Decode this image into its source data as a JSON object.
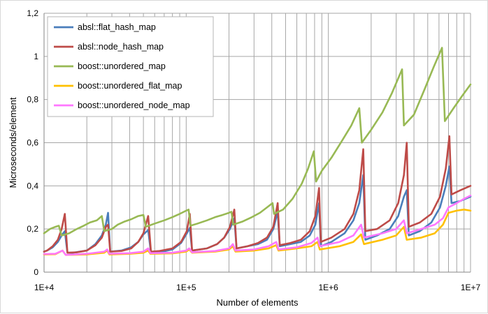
{
  "chart_data": {
    "type": "line",
    "xlabel": "Number of elements",
    "ylabel": "Microseconds/element",
    "xscale": "log",
    "xlim": [
      10000,
      10000000
    ],
    "ylim": [
      0,
      1.2
    ],
    "grid": true,
    "legend_position": "top-left",
    "x_tick_labels": [
      "1E+4",
      "1E+5",
      "1E+6",
      "1E+7"
    ],
    "y_tick_labels": [
      "0",
      "0,2",
      "0,4",
      "0,6",
      "0,8",
      "1",
      "1,2"
    ],
    "series": [
      {
        "name": "absl::flat_hash_map",
        "color": "#4a7ebb",
        "points": [
          [
            10000,
            0.095
          ],
          [
            10500,
            0.1
          ],
          [
            11500,
            0.115
          ],
          [
            12500,
            0.14
          ],
          [
            13300,
            0.17
          ],
          [
            14000,
            0.19
          ],
          [
            14600,
            0.09
          ],
          [
            16000,
            0.09
          ],
          [
            20000,
            0.1
          ],
          [
            23000,
            0.13
          ],
          [
            25500,
            0.17
          ],
          [
            27200,
            0.22
          ],
          [
            28200,
            0.275
          ],
          [
            29200,
            0.095
          ],
          [
            35000,
            0.1
          ],
          [
            41000,
            0.115
          ],
          [
            46000,
            0.14
          ],
          [
            50000,
            0.175
          ],
          [
            54000,
            0.195
          ],
          [
            56500,
            0.09
          ],
          [
            65000,
            0.092
          ],
          [
            80000,
            0.105
          ],
          [
            92000,
            0.135
          ],
          [
            101000,
            0.18
          ],
          [
            106000,
            0.205
          ],
          [
            110000,
            0.1
          ],
          [
            140000,
            0.11
          ],
          [
            165000,
            0.13
          ],
          [
            185000,
            0.16
          ],
          [
            203000,
            0.2
          ],
          [
            218000,
            0.25
          ],
          [
            226000,
            0.11
          ],
          [
            270000,
            0.12
          ],
          [
            320000,
            0.13
          ],
          [
            370000,
            0.15
          ],
          [
            410000,
            0.2
          ],
          [
            440000,
            0.28
          ],
          [
            455000,
            0.12
          ],
          [
            540000,
            0.13
          ],
          [
            640000,
            0.14
          ],
          [
            740000,
            0.17
          ],
          [
            810000,
            0.22
          ],
          [
            860000,
            0.32
          ],
          [
            885000,
            0.12
          ],
          [
            1050000,
            0.14
          ],
          [
            1300000,
            0.18
          ],
          [
            1500000,
            0.24
          ],
          [
            1650000,
            0.32
          ],
          [
            1760000,
            0.45
          ],
          [
            1820000,
            0.15
          ],
          [
            2200000,
            0.17
          ],
          [
            2700000,
            0.2
          ],
          [
            3100000,
            0.26
          ],
          [
            3400000,
            0.35
          ],
          [
            3560000,
            0.38
          ],
          [
            3680000,
            0.17
          ],
          [
            4400000,
            0.19
          ],
          [
            5300000,
            0.23
          ],
          [
            6100000,
            0.3
          ],
          [
            6700000,
            0.4
          ],
          [
            7100000,
            0.49
          ],
          [
            7350000,
            0.32
          ],
          [
            8500000,
            0.33
          ],
          [
            10000000,
            0.35
          ]
        ]
      },
      {
        "name": "absl::node_hash_map",
        "color": "#be4b48",
        "points": [
          [
            10000,
            0.095
          ],
          [
            10500,
            0.1
          ],
          [
            11500,
            0.12
          ],
          [
            12500,
            0.15
          ],
          [
            13300,
            0.2
          ],
          [
            14000,
            0.27
          ],
          [
            14600,
            0.09
          ],
          [
            17000,
            0.092
          ],
          [
            20000,
            0.1
          ],
          [
            23000,
            0.125
          ],
          [
            25500,
            0.16
          ],
          [
            27200,
            0.21
          ],
          [
            28200,
            0.22
          ],
          [
            29200,
            0.095
          ],
          [
            35000,
            0.098
          ],
          [
            41000,
            0.11
          ],
          [
            46000,
            0.14
          ],
          [
            50000,
            0.18
          ],
          [
            54000,
            0.26
          ],
          [
            56500,
            0.095
          ],
          [
            65000,
            0.098
          ],
          [
            80000,
            0.11
          ],
          [
            92000,
            0.14
          ],
          [
            101000,
            0.19
          ],
          [
            106000,
            0.27
          ],
          [
            110000,
            0.1
          ],
          [
            140000,
            0.11
          ],
          [
            165000,
            0.13
          ],
          [
            185000,
            0.16
          ],
          [
            203000,
            0.21
          ],
          [
            218000,
            0.29
          ],
          [
            226000,
            0.11
          ],
          [
            270000,
            0.12
          ],
          [
            320000,
            0.135
          ],
          [
            370000,
            0.16
          ],
          [
            410000,
            0.21
          ],
          [
            440000,
            0.32
          ],
          [
            455000,
            0.125
          ],
          [
            540000,
            0.135
          ],
          [
            640000,
            0.15
          ],
          [
            740000,
            0.19
          ],
          [
            810000,
            0.26
          ],
          [
            860000,
            0.39
          ],
          [
            885000,
            0.14
          ],
          [
            1050000,
            0.16
          ],
          [
            1300000,
            0.2
          ],
          [
            1500000,
            0.27
          ],
          [
            1650000,
            0.38
          ],
          [
            1760000,
            0.57
          ],
          [
            1820000,
            0.19
          ],
          [
            2200000,
            0.2
          ],
          [
            2700000,
            0.24
          ],
          [
            3100000,
            0.32
          ],
          [
            3400000,
            0.45
          ],
          [
            3560000,
            0.6
          ],
          [
            3680000,
            0.21
          ],
          [
            4400000,
            0.23
          ],
          [
            5300000,
            0.27
          ],
          [
            6100000,
            0.35
          ],
          [
            6700000,
            0.48
          ],
          [
            7100000,
            0.63
          ],
          [
            7350000,
            0.36
          ],
          [
            8500000,
            0.38
          ],
          [
            10000000,
            0.4
          ]
        ]
      },
      {
        "name": "boost::unordered_map",
        "color": "#98b954",
        "points": [
          [
            10000,
            0.18
          ],
          [
            11000,
            0.2
          ],
          [
            12000,
            0.21
          ],
          [
            12700,
            0.215
          ],
          [
            13300,
            0.17
          ],
          [
            15000,
            0.18
          ],
          [
            17000,
            0.2
          ],
          [
            19000,
            0.215
          ],
          [
            21000,
            0.23
          ],
          [
            23500,
            0.24
          ],
          [
            25500,
            0.26
          ],
          [
            26500,
            0.19
          ],
          [
            30000,
            0.2
          ],
          [
            33000,
            0.22
          ],
          [
            37000,
            0.235
          ],
          [
            41000,
            0.245
          ],
          [
            46000,
            0.26
          ],
          [
            50000,
            0.265
          ],
          [
            52000,
            0.21
          ],
          [
            60000,
            0.225
          ],
          [
            70000,
            0.24
          ],
          [
            80000,
            0.255
          ],
          [
            90000,
            0.27
          ],
          [
            100000,
            0.285
          ],
          [
            104000,
            0.29
          ],
          [
            107000,
            0.215
          ],
          [
            120000,
            0.225
          ],
          [
            140000,
            0.24
          ],
          [
            160000,
            0.255
          ],
          [
            180000,
            0.265
          ],
          [
            200000,
            0.275
          ],
          [
            208000,
            0.28
          ],
          [
            214000,
            0.22
          ],
          [
            250000,
            0.235
          ],
          [
            290000,
            0.255
          ],
          [
            330000,
            0.275
          ],
          [
            370000,
            0.3
          ],
          [
            405000,
            0.32
          ],
          [
            415000,
            0.27
          ],
          [
            480000,
            0.29
          ],
          [
            560000,
            0.34
          ],
          [
            650000,
            0.41
          ],
          [
            720000,
            0.48
          ],
          [
            790000,
            0.56
          ],
          [
            820000,
            0.42
          ],
          [
            900000,
            0.47
          ],
          [
            1050000,
            0.53
          ],
          [
            1250000,
            0.61
          ],
          [
            1450000,
            0.68
          ],
          [
            1650000,
            0.76
          ],
          [
            1720000,
            0.6
          ],
          [
            2000000,
            0.66
          ],
          [
            2400000,
            0.74
          ],
          [
            2800000,
            0.83
          ],
          [
            3300000,
            0.94
          ],
          [
            3400000,
            0.68
          ],
          [
            4000000,
            0.73
          ],
          [
            4700000,
            0.84
          ],
          [
            5500000,
            0.95
          ],
          [
            6300000,
            1.04
          ],
          [
            6600000,
            0.7
          ],
          [
            7600000,
            0.76
          ],
          [
            8800000,
            0.82
          ],
          [
            10000000,
            0.87
          ]
        ]
      },
      {
        "name": "boost::unordered_flat_map",
        "color": "#ffc000",
        "points": [
          [
            10000,
            0.082
          ],
          [
            12000,
            0.083
          ],
          [
            13500,
            0.1
          ],
          [
            14200,
            0.08
          ],
          [
            20000,
            0.082
          ],
          [
            26500,
            0.09
          ],
          [
            27800,
            0.1
          ],
          [
            28800,
            0.082
          ],
          [
            40000,
            0.085
          ],
          [
            50000,
            0.09
          ],
          [
            54000,
            0.1
          ],
          [
            56000,
            0.085
          ],
          [
            80000,
            0.087
          ],
          [
            100000,
            0.095
          ],
          [
            105000,
            0.105
          ],
          [
            110000,
            0.09
          ],
          [
            160000,
            0.095
          ],
          [
            200000,
            0.105
          ],
          [
            213000,
            0.12
          ],
          [
            222000,
            0.095
          ],
          [
            300000,
            0.1
          ],
          [
            380000,
            0.11
          ],
          [
            430000,
            0.125
          ],
          [
            446000,
            0.1
          ],
          [
            600000,
            0.11
          ],
          [
            760000,
            0.12
          ],
          [
            840000,
            0.14
          ],
          [
            870000,
            0.105
          ],
          [
            1200000,
            0.12
          ],
          [
            1500000,
            0.14
          ],
          [
            1700000,
            0.175
          ],
          [
            1780000,
            0.13
          ],
          [
            2400000,
            0.15
          ],
          [
            3000000,
            0.17
          ],
          [
            3400000,
            0.21
          ],
          [
            3560000,
            0.15
          ],
          [
            4500000,
            0.16
          ],
          [
            5600000,
            0.18
          ],
          [
            6400000,
            0.22
          ],
          [
            7000000,
            0.275
          ],
          [
            8000000,
            0.285
          ],
          [
            9000000,
            0.29
          ],
          [
            10000000,
            0.285
          ]
        ]
      },
      {
        "name": "boost::unordered_node_map",
        "color": "#ff77ff",
        "points": [
          [
            10000,
            0.084
          ],
          [
            12000,
            0.085
          ],
          [
            13500,
            0.1
          ],
          [
            14200,
            0.08
          ],
          [
            20000,
            0.085
          ],
          [
            26500,
            0.095
          ],
          [
            27800,
            0.105
          ],
          [
            28800,
            0.085
          ],
          [
            40000,
            0.088
          ],
          [
            50000,
            0.095
          ],
          [
            54000,
            0.11
          ],
          [
            56000,
            0.088
          ],
          [
            80000,
            0.09
          ],
          [
            100000,
            0.1
          ],
          [
            105000,
            0.11
          ],
          [
            110000,
            0.092
          ],
          [
            160000,
            0.098
          ],
          [
            200000,
            0.11
          ],
          [
            213000,
            0.13
          ],
          [
            222000,
            0.1
          ],
          [
            300000,
            0.105
          ],
          [
            380000,
            0.12
          ],
          [
            430000,
            0.14
          ],
          [
            446000,
            0.105
          ],
          [
            600000,
            0.115
          ],
          [
            760000,
            0.135
          ],
          [
            840000,
            0.16
          ],
          [
            870000,
            0.12
          ],
          [
            1200000,
            0.14
          ],
          [
            1500000,
            0.17
          ],
          [
            1700000,
            0.22
          ],
          [
            1780000,
            0.16
          ],
          [
            2400000,
            0.18
          ],
          [
            3000000,
            0.2
          ],
          [
            3400000,
            0.24
          ],
          [
            3560000,
            0.18
          ],
          [
            4500000,
            0.2
          ],
          [
            5600000,
            0.22
          ],
          [
            6400000,
            0.25
          ],
          [
            7000000,
            0.3
          ],
          [
            8000000,
            0.32
          ],
          [
            9000000,
            0.34
          ],
          [
            10000000,
            0.355
          ]
        ]
      }
    ]
  }
}
